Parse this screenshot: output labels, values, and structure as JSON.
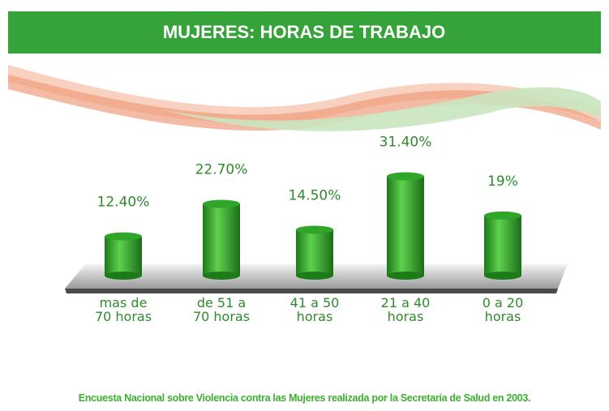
{
  "chart_data": {
    "type": "bar",
    "title": "MUJERES: HORAS DE TRABAJO",
    "categories": [
      "mas de\n70 horas",
      "de 51 a\n70 horas",
      "41 a 50\nhoras",
      "21 a 40\nhoras",
      "0 a 20\nhoras"
    ],
    "values": [
      12.4,
      22.7,
      14.5,
      31.4,
      19
    ],
    "value_labels": [
      "12.40%",
      "22.70%",
      "14.50%",
      "31.40%",
      "19%"
    ],
    "color": "#2fa62a",
    "source": "Encuesta Nacional sobre Violencia contra las Mujeres realizada por la Secretaría de Salud en 2003."
  }
}
